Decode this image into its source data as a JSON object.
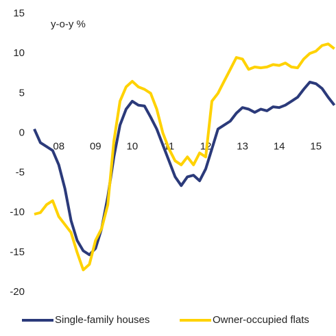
{
  "chart_data": {
    "type": "line",
    "annotation": "y-o-y %",
    "categories": [
      null,
      null,
      null,
      null,
      "08",
      null,
      null,
      null,
      null,
      null,
      "09",
      null,
      null,
      null,
      null,
      null,
      "10",
      null,
      null,
      null,
      null,
      null,
      "11",
      null,
      null,
      null,
      null,
      null,
      "12",
      null,
      null,
      null,
      null,
      null,
      "13",
      null,
      null,
      null,
      null,
      null,
      "14",
      null,
      null,
      null,
      null,
      null,
      "15",
      null,
      null,
      null
    ],
    "series": [
      {
        "name": "Single-family houses",
        "color": "#2b3a7a",
        "values": [
          0.5,
          -1.2,
          -1.7,
          -2.2,
          -4,
          -7,
          -11,
          -13.5,
          -14.8,
          -15.3,
          -14.5,
          -12,
          -8,
          -3,
          1,
          3,
          4,
          3.5,
          3.4,
          2,
          0.5,
          -1.5,
          -3.5,
          -5.5,
          -6.6,
          -5.5,
          -5.3,
          -6,
          -4.5,
          -2,
          0.5,
          1,
          1.5,
          2.5,
          3.2,
          3,
          2.6,
          3,
          2.8,
          3.3,
          3.2,
          3.5,
          4,
          4.5,
          5.5,
          6.4,
          6.2,
          5.6,
          4.5,
          3.5
        ]
      },
      {
        "name": "Owner-occupied flats",
        "color": "#ffd200",
        "values": [
          -10.2,
          -10,
          -9,
          -8.5,
          -10.5,
          -11.5,
          -12.5,
          -15,
          -17.2,
          -16.5,
          -13.5,
          -12,
          -9,
          -1,
          4,
          5.8,
          6.5,
          5.8,
          5.5,
          5,
          3,
          0,
          -2,
          -3.5,
          -4,
          -3,
          -4,
          -2.5,
          -3,
          4,
          5,
          6.5,
          8,
          9.5,
          9.3,
          8,
          8.3,
          8.2,
          8.3,
          8.6,
          8.5,
          8.8,
          8.3,
          8.2,
          9.3,
          10,
          10.3,
          11,
          11.2,
          10.6
        ]
      }
    ],
    "ylim": [
      -20,
      15
    ],
    "yticks": [
      -20,
      -15,
      -10,
      -5,
      0,
      5,
      10,
      15
    ],
    "legend": "bottom"
  }
}
